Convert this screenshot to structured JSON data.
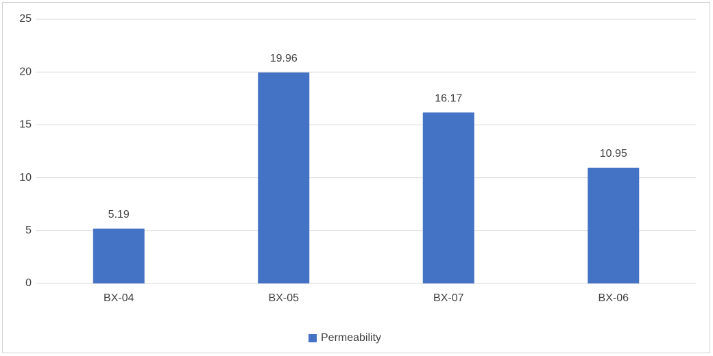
{
  "chart_data": {
    "type": "bar",
    "categories": [
      "BX-04",
      "BX-05",
      "BX-07",
      "BX-06"
    ],
    "series": [
      {
        "name": "Permeability",
        "color": "#4472c4",
        "values": [
          5.19,
          19.96,
          16.17,
          10.95
        ]
      }
    ],
    "ylim": [
      0,
      25
    ],
    "yticks": [
      0,
      5,
      10,
      15,
      20,
      25
    ],
    "grid": true,
    "legend": "bottom"
  }
}
